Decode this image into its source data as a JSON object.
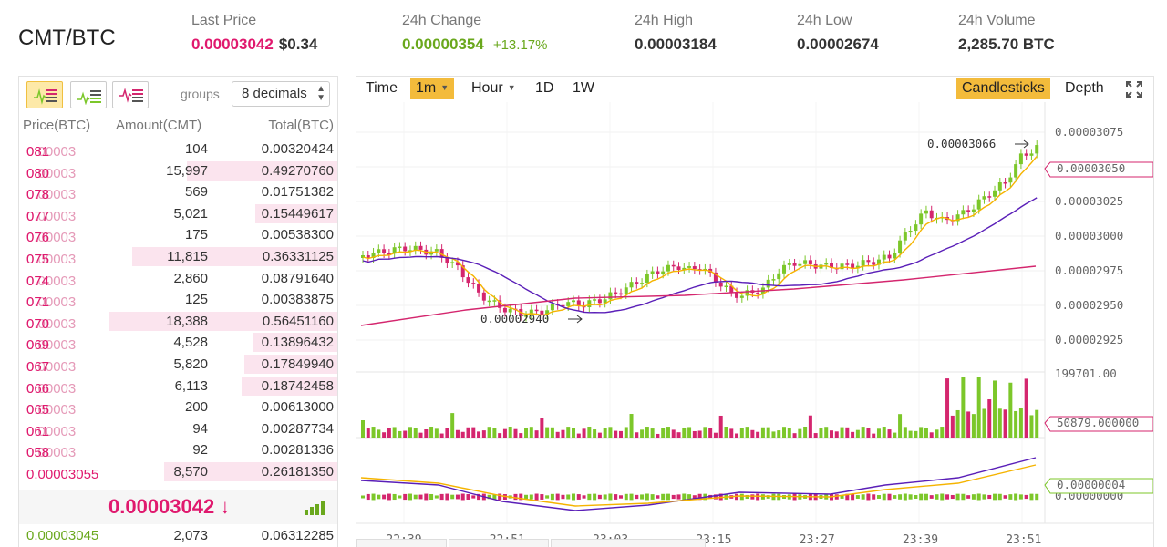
{
  "header": {
    "pair": "CMT/BTC",
    "last_price_label": "Last Price",
    "last_price": "0.00003042",
    "last_price_usd": "$0.34",
    "change_label": "24h Change",
    "change_value": "0.00000354",
    "change_pct": "+13.17%",
    "high_label": "24h High",
    "high_value": "0.00003184",
    "low_label": "24h Low",
    "low_value": "0.00002674",
    "volume_label": "24h Volume",
    "volume_value": "2,285.70 BTC"
  },
  "orderbook": {
    "groups_label": "groups",
    "groups_value": "8 decimals",
    "col_price": "Price(BTC)",
    "col_amount": "Amount(CMT)",
    "col_total": "Total(BTC)",
    "asks": [
      {
        "dim": "0.00003",
        "hi": "081",
        "amount": "104",
        "total": "0.00320424",
        "depth": 0.0
      },
      {
        "dim": "0.00003",
        "hi": "080",
        "amount": "15,997",
        "total": "0.49270760",
        "depth": 0.66
      },
      {
        "dim": "0.00003",
        "hi": "078",
        "amount": "569",
        "total": "0.01751382",
        "depth": 0.0
      },
      {
        "dim": "0.00003",
        "hi": "077",
        "amount": "5,021",
        "total": "0.15449617",
        "depth": 0.36
      },
      {
        "dim": "0.00003",
        "hi": "076",
        "amount": "175",
        "total": "0.00538300",
        "depth": 0.0
      },
      {
        "dim": "0.00003",
        "hi": "075",
        "amount": "11,815",
        "total": "0.36331125",
        "depth": 0.9
      },
      {
        "dim": "0.00003",
        "hi": "074",
        "amount": "2,860",
        "total": "0.08791640",
        "depth": 0.0
      },
      {
        "dim": "0.00003",
        "hi": "071",
        "amount": "125",
        "total": "0.00383875",
        "depth": 0.0
      },
      {
        "dim": "0.00003",
        "hi": "070",
        "amount": "18,388",
        "total": "0.56451160",
        "depth": 1.0
      },
      {
        "dim": "0.00003",
        "hi": "069",
        "amount": "4,528",
        "total": "0.13896432",
        "depth": 0.37
      },
      {
        "dim": "0.00003",
        "hi": "067",
        "amount": "5,820",
        "total": "0.17849940",
        "depth": 0.41
      },
      {
        "dim": "0.00003",
        "hi": "066",
        "amount": "6,113",
        "total": "0.18742458",
        "depth": 0.42
      },
      {
        "dim": "0.00003",
        "hi": "065",
        "amount": "200",
        "total": "0.00613000",
        "depth": 0.0
      },
      {
        "dim": "0.00003",
        "hi": "061",
        "amount": "94",
        "total": "0.00287734",
        "depth": 0.0
      },
      {
        "dim": "0.00003",
        "hi": "058",
        "amount": "92",
        "total": "0.00281336",
        "depth": 0.0
      },
      {
        "dim": "",
        "hi": "0.00003055",
        "amount": "8,570",
        "total": "0.26181350",
        "depth": 0.76
      }
    ],
    "last_price": "0.00003042 ↓",
    "bid_first": {
      "price": "0.00003045",
      "amount": "2,073",
      "total": "0.06312285"
    }
  },
  "chart": {
    "tb_time": "Time",
    "tb_1m": "1m",
    "tb_hour": "Hour",
    "tb_1d": "1D",
    "tb_1w": "1W",
    "tb_candles": "Candlesticks",
    "tb_depth": "Depth",
    "y_ticks": [
      "0.00003075",
      "0.00003050",
      "0.00003025",
      "0.00003000",
      "0.00002975",
      "0.00002950",
      "0.00002925"
    ],
    "price_tag": "0.00003050",
    "high_note": "0.00003066",
    "low_note": "0.00002940",
    "vol_max": "199701.00",
    "vol_tag": "50879.000000",
    "macd_tag": "0.00000004",
    "macd_axis": "0.00000000",
    "x_ticks": [
      "22:39",
      "22:51",
      "23:03",
      "23:15",
      "23:27",
      "23:39",
      "23:51"
    ],
    "colors": {
      "up": "#7cc72a",
      "down": "#d4266e",
      "ma_short": "#f5b400",
      "ma_mid": "#5a1fb8",
      "ma_long": "#d4266e"
    }
  }
}
